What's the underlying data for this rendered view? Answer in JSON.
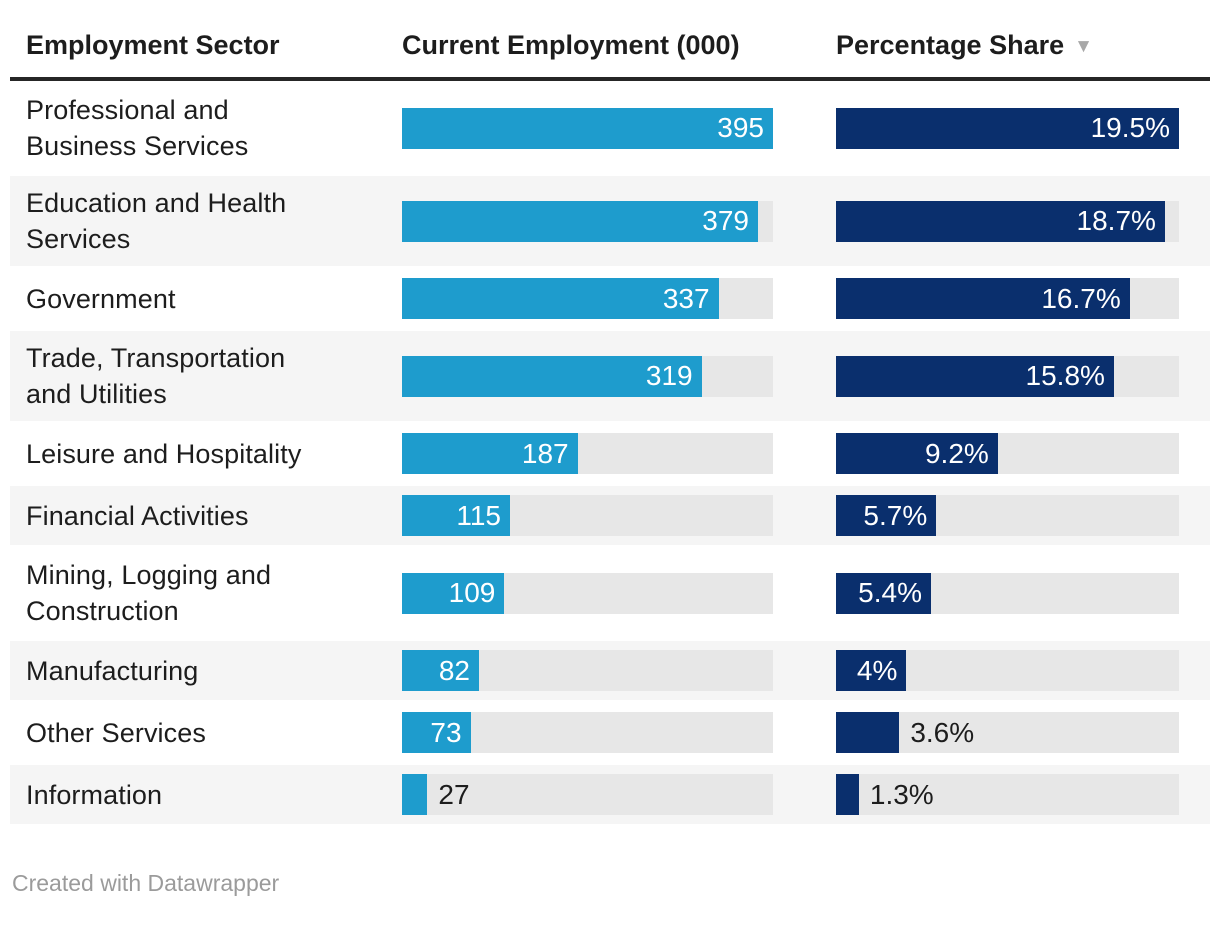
{
  "table": {
    "columns": [
      "Employment Sector",
      "Current Employment (000)",
      "Percentage Share"
    ],
    "sort_indicator": "▼",
    "sorted_column": "Percentage Share",
    "sort_direction": "desc",
    "employment_max": 395,
    "share_max": 19.5,
    "rows": [
      {
        "sector": "Professional and Business Services",
        "employment": 395,
        "employment_label": "395",
        "share": 19.5,
        "share_label": "19.5%"
      },
      {
        "sector": "Education and Health Services",
        "employment": 379,
        "employment_label": "379",
        "share": 18.7,
        "share_label": "18.7%"
      },
      {
        "sector": "Government",
        "employment": 337,
        "employment_label": "337",
        "share": 16.7,
        "share_label": "16.7%"
      },
      {
        "sector": "Trade, Transportation and Utilities",
        "employment": 319,
        "employment_label": "319",
        "share": 15.8,
        "share_label": "15.8%"
      },
      {
        "sector": "Leisure and Hospitality",
        "employment": 187,
        "employment_label": "187",
        "share": 9.2,
        "share_label": "9.2%"
      },
      {
        "sector": "Financial Activities",
        "employment": 115,
        "employment_label": "115",
        "share": 5.7,
        "share_label": "5.7%"
      },
      {
        "sector": "Mining, Logging and Construction",
        "employment": 109,
        "employment_label": "109",
        "share": 5.4,
        "share_label": "5.4%"
      },
      {
        "sector": "Manufacturing",
        "employment": 82,
        "employment_label": "82",
        "share": 4,
        "share_label": "4%"
      },
      {
        "sector": "Other Services",
        "employment": 73,
        "employment_label": "73",
        "share": 3.6,
        "share_label": "3.6%"
      },
      {
        "sector": "Information",
        "employment": 27,
        "employment_label": "27",
        "share": 1.3,
        "share_label": "1.3%"
      }
    ]
  },
  "chart_data": {
    "type": "table",
    "title": "",
    "columns": [
      "Employment Sector",
      "Current Employment (000)",
      "Percentage Share"
    ],
    "categories": [
      "Professional and Business Services",
      "Education and Health Services",
      "Government",
      "Trade, Transportation and Utilities",
      "Leisure and Hospitality",
      "Financial Activities",
      "Mining, Logging and Construction",
      "Manufacturing",
      "Other Services",
      "Information"
    ],
    "series": [
      {
        "name": "Current Employment (000)",
        "values": [
          395,
          379,
          337,
          319,
          187,
          115,
          109,
          82,
          73,
          27
        ]
      },
      {
        "name": "Percentage Share",
        "values": [
          19.5,
          18.7,
          16.7,
          15.8,
          9.2,
          5.7,
          5.4,
          4,
          3.6,
          1.3
        ]
      }
    ],
    "sort": {
      "column": "Percentage Share",
      "direction": "desc"
    },
    "layout": {
      "bar_value_labels": true,
      "row_striping": true
    }
  },
  "colors": {
    "employment_bar": "#1E9CCD",
    "share_bar": "#0A2F6D",
    "bar_track": "#e7e7e7",
    "row_stripe": "#f5f5f5",
    "header_rule": "#262626",
    "text": "#1d1d1d",
    "muted_text": "#9b9b9b",
    "sort_arrow": "#a8a8a8"
  },
  "footer": {
    "credit": "Created with Datawrapper"
  }
}
